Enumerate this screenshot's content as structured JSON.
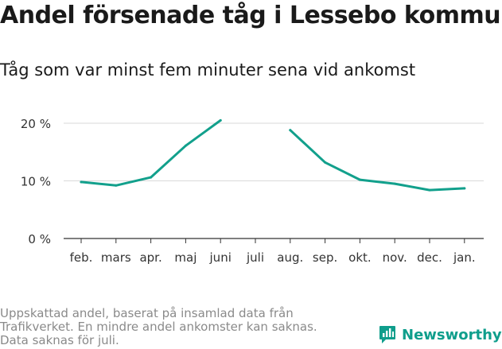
{
  "header": {
    "title": "Andel försenade tåg i Lessebo kommun",
    "subtitle": "Tåg som var minst fem minuter sena vid ankomst"
  },
  "footer": {
    "note_line1": "Uppskattad andel, baserat på insamlad data från",
    "note_line2": "Trafikverket. En mindre andel ankomster kan saknas.",
    "note_line3": "Data saknas för juli.",
    "brand": "Newsworthy"
  },
  "colors": {
    "line": "#12a08c",
    "grid": "#d9d9d9",
    "axis": "#333333",
    "brand": "#0f9e8c"
  },
  "chart_data": {
    "type": "line",
    "title": "Andel försenade tåg i Lessebo kommun",
    "subtitle": "Tåg som var minst fem minuter sena vid ankomst",
    "xlabel": "",
    "ylabel": "",
    "categories": [
      "feb.",
      "mars",
      "apr.",
      "maj",
      "juni",
      "juli",
      "aug.",
      "sep.",
      "okt.",
      "nov.",
      "dec.",
      "jan."
    ],
    "series": [
      {
        "name": "Andel försenade tåg",
        "values": [
          9.8,
          9.2,
          10.6,
          16.1,
          20.5,
          null,
          18.8,
          13.2,
          10.2,
          9.5,
          8.4,
          8.7
        ]
      }
    ],
    "ylim": [
      0,
      20
    ],
    "yticks": [
      0,
      10,
      20
    ],
    "ytick_labels": [
      "0 %",
      "10 %",
      "20 %"
    ],
    "grid": true
  }
}
